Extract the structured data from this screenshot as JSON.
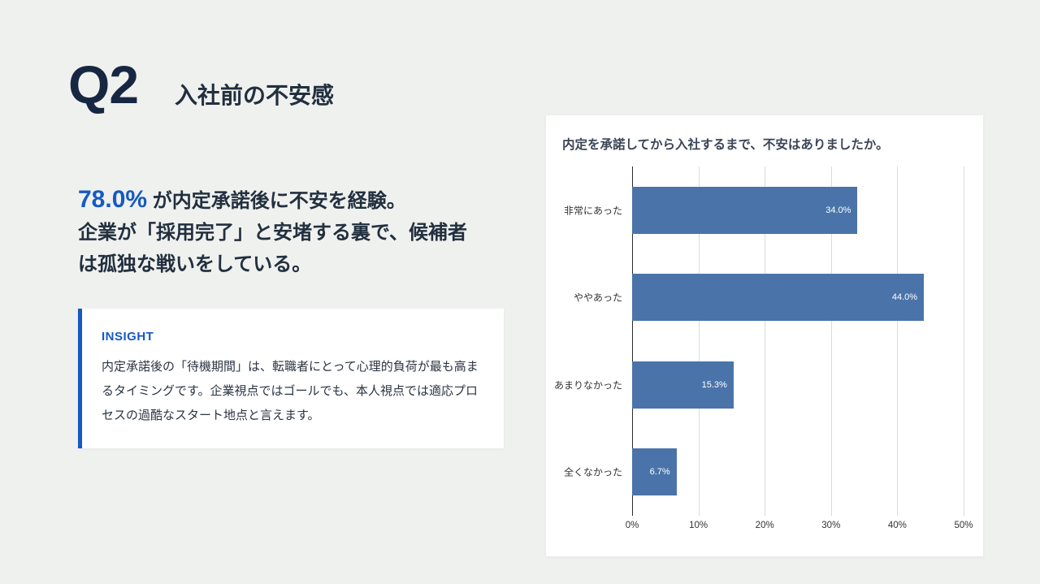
{
  "header": {
    "q_label": "Q2",
    "title": "入社前の不安感"
  },
  "stat": {
    "highlight": "78.0%",
    "line1_rest": " が内定承諾後に不安を経験。",
    "line2": "企業が「採用完了」と安堵する裏で、候補者",
    "line3": "は孤独な戦いをしている。"
  },
  "insight": {
    "label": "INSIGHT",
    "body": "内定承諾後の「待機期間」は、転職者にとって心理的負荷が最も高まるタイミングです。企業視点ではゴールでも、本人視点では適応プロセスの過酷なスタート地点と言えます。"
  },
  "chart_data": {
    "type": "bar",
    "orientation": "horizontal",
    "title": "内定を承諾してから入社するまで、不安はありましたか。",
    "categories": [
      "非常にあった",
      "ややあった",
      "あまりなかった",
      "全くなかった"
    ],
    "values": [
      34.0,
      44.0,
      15.3,
      6.7
    ],
    "value_labels": [
      "34.0%",
      "44.0%",
      "15.3%",
      "6.7%"
    ],
    "xlim": [
      0,
      50
    ],
    "x_ticks": [
      0,
      10,
      20,
      30,
      40,
      50
    ],
    "x_tick_labels": [
      "0%",
      "10%",
      "20%",
      "30%",
      "40%",
      "50%"
    ],
    "grid": true,
    "legend": "none",
    "bar_color": "#4a74a9"
  },
  "colors": {
    "accent_blue": "#1659c2",
    "heading": "#222f3e",
    "bar": "#4a74a9",
    "background": "#eff1ef"
  }
}
